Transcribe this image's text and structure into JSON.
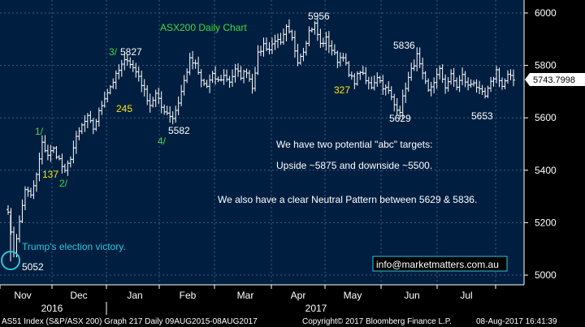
{
  "chart_data": {
    "type": "ohlc",
    "title": "ASX200 Daily Chart",
    "ylim": [
      4960,
      6040
    ],
    "yticks": [
      5000,
      5200,
      5400,
      5600,
      5800,
      6000
    ],
    "x_months": [
      "Nov",
      "Dec",
      "Jan",
      "Feb",
      "Mar",
      "Apr",
      "May",
      "Jun",
      "Jul"
    ],
    "x_years": [
      "2016",
      "2017"
    ],
    "grid": true,
    "last_price": "5743.7998",
    "path": [
      [
        "Nov",
        5220
      ],
      [
        "Nov",
        5090
      ],
      [
        "Nov",
        5200
      ],
      [
        "Nov",
        5330
      ],
      [
        "Nov",
        5300
      ],
      [
        "Nov",
        5380
      ],
      [
        "Nov",
        5500
      ],
      [
        "Nov",
        5460
      ],
      [
        "Nov",
        5480
      ],
      [
        "Nov",
        5440
      ],
      [
        "Dec",
        5390
      ],
      [
        "Dec",
        5450
      ],
      [
        "Dec",
        5520
      ],
      [
        "Dec",
        5570
      ],
      [
        "Dec",
        5600
      ],
      [
        "Dec",
        5560
      ],
      [
        "Dec",
        5620
      ],
      [
        "Dec",
        5680
      ],
      [
        "Dec",
        5720
      ],
      [
        "Dec",
        5760
      ],
      [
        "Jan",
        5800
      ],
      [
        "Jan",
        5827
      ],
      [
        "Jan",
        5790
      ],
      [
        "Jan",
        5760
      ],
      [
        "Jan",
        5700
      ],
      [
        "Jan",
        5650
      ],
      [
        "Jan",
        5690
      ],
      [
        "Jan",
        5640
      ],
      [
        "Jan",
        5620
      ],
      [
        "Jan",
        5600
      ],
      [
        "Feb",
        5660
      ],
      [
        "Feb",
        5740
      ],
      [
        "Feb",
        5820
      ],
      [
        "Feb",
        5800
      ],
      [
        "Feb",
        5740
      ],
      [
        "Feb",
        5720
      ],
      [
        "Feb",
        5760
      ],
      [
        "Feb",
        5740
      ],
      [
        "Feb",
        5760
      ],
      [
        "Feb",
        5740
      ],
      [
        "Mar",
        5780
      ],
      [
        "Mar",
        5760
      ],
      [
        "Mar",
        5780
      ],
      [
        "Mar",
        5720
      ],
      [
        "Mar",
        5840
      ],
      [
        "Mar",
        5880
      ],
      [
        "Mar",
        5860
      ],
      [
        "Mar",
        5900
      ],
      [
        "Mar",
        5880
      ],
      [
        "Mar",
        5940
      ],
      [
        "Apr",
        5900
      ],
      [
        "Apr",
        5820
      ],
      [
        "Apr",
        5860
      ],
      [
        "Apr",
        5930
      ],
      [
        "Apr",
        5956
      ],
      [
        "Apr",
        5880
      ],
      [
        "Apr",
        5900
      ],
      [
        "Apr",
        5860
      ],
      [
        "Apr",
        5820
      ],
      [
        "Apr",
        5840
      ],
      [
        "May",
        5760
      ],
      [
        "May",
        5740
      ],
      [
        "May",
        5780
      ],
      [
        "May",
        5740
      ],
      [
        "May",
        5720
      ],
      [
        "May",
        5760
      ],
      [
        "May",
        5720
      ],
      [
        "May",
        5700
      ],
      [
        "May",
        5650
      ],
      [
        "May",
        5629
      ],
      [
        "Jun",
        5720
      ],
      [
        "Jun",
        5780
      ],
      [
        "Jun",
        5836
      ],
      [
        "Jun",
        5760
      ],
      [
        "Jun",
        5700
      ],
      [
        "Jun",
        5740
      ],
      [
        "Jun",
        5780
      ],
      [
        "Jun",
        5720
      ],
      [
        "Jun",
        5760
      ],
      [
        "Jun",
        5720
      ],
      [
        "Jul",
        5760
      ],
      [
        "Jul",
        5720
      ],
      [
        "Jul",
        5740
      ],
      [
        "Jul",
        5700
      ],
      [
        "Jul",
        5680
      ],
      [
        "Jul",
        5730
      ],
      [
        "Jul",
        5780
      ],
      [
        "Jul",
        5720
      ],
      [
        "Jul",
        5760
      ],
      [
        "Jul",
        5744
      ]
    ],
    "wave_labels": [
      {
        "text": "3/",
        "color": "#3fd93f"
      },
      {
        "text": "5827",
        "color": "#ffffff"
      },
      {
        "text": "245",
        "color": "#ffe600"
      },
      {
        "text": "1/",
        "color": "#3fd93f"
      },
      {
        "text": "137",
        "color": "#ffe600"
      },
      {
        "text": "2/",
        "color": "#3fd93f"
      },
      {
        "text": "4/",
        "color": "#3fd93f"
      },
      {
        "text": "5582",
        "color": "#ffffff"
      },
      {
        "text": "5956",
        "color": "#ffffff"
      },
      {
        "text": "327",
        "color": "#ffe600"
      },
      {
        "text": "5836",
        "color": "#ffffff"
      },
      {
        "text": "5629",
        "color": "#ffffff"
      },
      {
        "text": "5653",
        "color": "#ffffff"
      },
      {
        "text": "5052",
        "color": "#ffffff"
      }
    ],
    "annotations": [
      "We have two potential \"abc\" targets:",
      "Upside ~5875 and downside ~5500.",
      "We also have a clear Neutral Pattern between 5629 & 5836.",
      "Trump's election victory."
    ],
    "contact": "info@marketmatters.com.au"
  },
  "footer": {
    "left": "AS51 Index (S&P/ASX 200) Graph 217  Daily 09AUG2015-08AUG2017",
    "center": "Copyright© 2017 Bloomberg Finance L.P.",
    "right": "08-Aug-2017  16:41:39"
  },
  "colors": {
    "background": "#000000",
    "plot": "#001f40",
    "grid": "#3a5a80",
    "price_bars": "#ffffff",
    "title": "#3fd93f",
    "highlight": "#2ec4d8",
    "accent_yellow": "#ffe600"
  }
}
